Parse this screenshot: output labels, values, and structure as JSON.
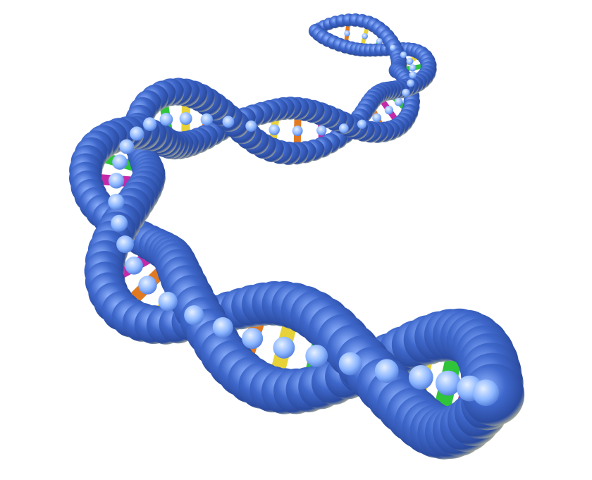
{
  "image": {
    "subject": "dna-double-helix-3d-render",
    "background_color": "#ffffff",
    "colors": {
      "bead": "#2f56b8",
      "bead_highlight": "#8fb3ff",
      "bead_rim": "#b8b89a",
      "rung_green": "#2fc43a",
      "rung_magenta": "#c42aa8",
      "rung_orange": "#e07a22",
      "rung_yellow": "#e8d23a",
      "joint": "#8cb6ff"
    }
  }
}
